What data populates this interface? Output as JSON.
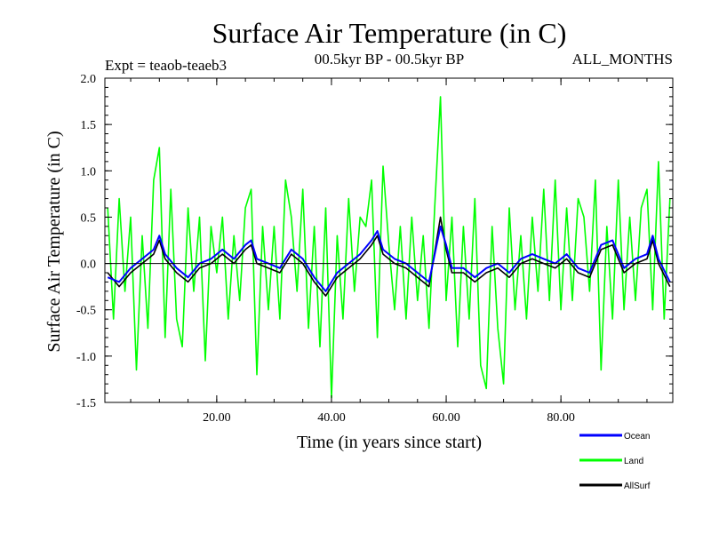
{
  "chart_data": {
    "type": "line",
    "title": "Surface Air Temperature (in C)",
    "subtitle_left": "Expt = teaob-teaeb3",
    "subtitle_center": "00.5kyr BP - 00.5kyr BP",
    "subtitle_right": "ALL_MONTHS",
    "xlabel": "Time (in years since start)",
    "ylabel": "Surface Air Temperature (in C)",
    "xlim": [
      0.5,
      99.5
    ],
    "ylim": [
      -1.5,
      2.0
    ],
    "x_ticks": [
      20,
      40,
      60,
      80
    ],
    "x_tick_labels": [
      "20.00",
      "40.00",
      "60.00",
      "80.00"
    ],
    "y_ticks": [
      -1.5,
      -1.0,
      -0.5,
      0.0,
      0.5,
      1.0,
      1.5,
      2.0
    ],
    "y_tick_labels": [
      "-1.5",
      "-1.0",
      "-0.5",
      "0.0",
      "0.5",
      "1.0",
      "1.5",
      "2.0"
    ],
    "zero_line": 0.0,
    "legend_position": "bottom-right",
    "series": [
      {
        "name": "Ocean",
        "color": "#0000ff",
        "x": [
          1,
          3,
          5,
          7,
          9,
          10,
          11,
          13,
          15,
          17,
          19,
          21,
          23,
          25,
          26,
          27,
          29,
          31,
          33,
          35,
          37,
          39,
          41,
          43,
          45,
          47,
          48,
          49,
          51,
          53,
          55,
          57,
          59,
          60,
          61,
          63,
          65,
          67,
          69,
          71,
          73,
          75,
          77,
          79,
          81,
          83,
          85,
          87,
          89,
          91,
          93,
          95,
          96,
          97,
          99
        ],
        "values": [
          -0.15,
          -0.2,
          -0.05,
          0.05,
          0.15,
          0.3,
          0.1,
          -0.05,
          -0.15,
          0.0,
          0.05,
          0.15,
          0.05,
          0.2,
          0.25,
          0.05,
          0.0,
          -0.05,
          0.15,
          0.05,
          -0.15,
          -0.3,
          -0.1,
          0.0,
          0.1,
          0.25,
          0.35,
          0.15,
          0.05,
          0.0,
          -0.1,
          -0.2,
          0.4,
          0.2,
          -0.05,
          -0.05,
          -0.15,
          -0.05,
          0.0,
          -0.1,
          0.05,
          0.1,
          0.05,
          0.0,
          0.1,
          -0.05,
          -0.1,
          0.2,
          0.25,
          -0.05,
          0.05,
          0.1,
          0.3,
          0.05,
          -0.2
        ]
      },
      {
        "name": "Land",
        "color": "#00ff00",
        "x": [
          1,
          2,
          3,
          4,
          5,
          6,
          7,
          8,
          9,
          10,
          11,
          12,
          13,
          14,
          15,
          16,
          17,
          18,
          19,
          20,
          21,
          22,
          23,
          24,
          25,
          26,
          27,
          28,
          29,
          30,
          31,
          32,
          33,
          34,
          35,
          36,
          37,
          38,
          39,
          40,
          41,
          42,
          43,
          44,
          45,
          46,
          47,
          48,
          49,
          50,
          51,
          52,
          53,
          54,
          55,
          56,
          57,
          58,
          59,
          60,
          61,
          62,
          63,
          64,
          65,
          66,
          67,
          68,
          69,
          70,
          71,
          72,
          73,
          74,
          75,
          76,
          77,
          78,
          79,
          80,
          81,
          82,
          83,
          84,
          85,
          86,
          87,
          88,
          89,
          90,
          91,
          92,
          93,
          94,
          95,
          96,
          97,
          98,
          99
        ],
        "values": [
          0.6,
          -0.6,
          0.7,
          -0.3,
          0.5,
          -1.15,
          0.3,
          -0.7,
          0.9,
          1.25,
          -0.8,
          0.8,
          -0.6,
          -0.9,
          0.6,
          -0.3,
          0.5,
          -1.05,
          0.4,
          -0.1,
          0.5,
          -0.6,
          0.3,
          -0.4,
          0.6,
          0.8,
          -1.2,
          0.4,
          -0.5,
          0.4,
          -0.6,
          0.9,
          0.5,
          -0.3,
          0.8,
          -0.7,
          0.4,
          -0.9,
          0.6,
          -1.45,
          0.3,
          -0.6,
          0.7,
          -0.3,
          0.5,
          0.4,
          0.9,
          -0.8,
          1.05,
          0.2,
          -0.5,
          0.4,
          -0.6,
          0.5,
          -0.4,
          0.3,
          -0.7,
          0.6,
          1.8,
          -0.4,
          0.5,
          -0.9,
          0.4,
          -0.6,
          0.7,
          -1.1,
          -1.35,
          0.4,
          -0.7,
          -1.3,
          0.6,
          -0.5,
          0.3,
          -0.6,
          0.5,
          -0.3,
          0.8,
          -0.4,
          0.9,
          -0.5,
          0.6,
          -0.4,
          0.7,
          0.5,
          -0.3,
          0.9,
          -1.15,
          0.4,
          -0.6,
          0.9,
          -0.5,
          0.5,
          -0.4,
          0.6,
          0.8,
          -0.5,
          1.1,
          -0.6,
          0.7
        ]
      },
      {
        "name": "AllSurf",
        "color": "#000000",
        "x": [
          1,
          3,
          5,
          7,
          9,
          10,
          11,
          13,
          15,
          17,
          19,
          21,
          23,
          25,
          26,
          27,
          29,
          31,
          33,
          35,
          37,
          39,
          41,
          43,
          45,
          47,
          48,
          49,
          51,
          53,
          55,
          57,
          59,
          60,
          61,
          63,
          65,
          67,
          69,
          71,
          73,
          75,
          77,
          79,
          81,
          83,
          85,
          87,
          89,
          91,
          93,
          95,
          96,
          97,
          99
        ],
        "values": [
          -0.1,
          -0.25,
          -0.1,
          0.0,
          0.1,
          0.25,
          0.05,
          -0.1,
          -0.2,
          -0.05,
          0.0,
          0.1,
          0.0,
          0.15,
          0.2,
          0.0,
          -0.05,
          -0.1,
          0.1,
          0.0,
          -0.2,
          -0.35,
          -0.15,
          -0.05,
          0.05,
          0.2,
          0.3,
          0.1,
          0.0,
          -0.05,
          -0.15,
          -0.25,
          0.5,
          0.15,
          -0.1,
          -0.1,
          -0.2,
          -0.1,
          -0.05,
          -0.15,
          0.0,
          0.05,
          0.0,
          -0.05,
          0.05,
          -0.1,
          -0.15,
          0.15,
          0.2,
          -0.1,
          0.0,
          0.05,
          0.25,
          0.0,
          -0.25
        ]
      }
    ]
  }
}
